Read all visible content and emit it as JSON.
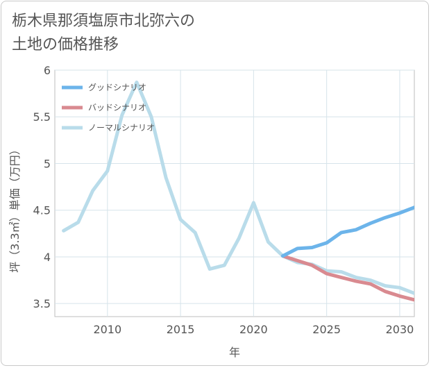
{
  "page": {
    "title_line1": "栃木県那須塩原市北弥六の",
    "title_line2": "土地の価格推移"
  },
  "chart_data": {
    "type": "line",
    "title": "栃木県那須塩原市北弥六の土地の価格推移",
    "xlabel": "年",
    "ylabel": "坪（3.3㎡）単価（万円）",
    "xlim": [
      2006.4,
      2031
    ],
    "ylim": [
      3.36,
      6
    ],
    "x_ticks": [
      2010,
      2015,
      2020,
      2025,
      2030
    ],
    "y_ticks": [
      3.5,
      4,
      4.5,
      5,
      5.5,
      6
    ],
    "y_tick_labels": [
      "3.5",
      "4",
      "4.5",
      "5",
      "5.5",
      "6"
    ],
    "grid": true,
    "legend_position": "top-left",
    "series": [
      {
        "name": "グッドシナリオ",
        "color": "#6cb4ea",
        "x": [
          2022,
          2023,
          2024,
          2025,
          2026,
          2027,
          2028,
          2029,
          2030,
          2031
        ],
        "y": [
          4.01,
          4.09,
          4.1,
          4.15,
          4.26,
          4.29,
          4.36,
          4.42,
          4.47,
          4.53
        ]
      },
      {
        "name": "バッドシナリオ",
        "color": "#d98a90",
        "x": [
          2022,
          2023,
          2024,
          2025,
          2026,
          2027,
          2028,
          2029,
          2030,
          2031
        ],
        "y": [
          4.01,
          3.96,
          3.91,
          3.82,
          3.78,
          3.74,
          3.71,
          3.63,
          3.58,
          3.54
        ]
      },
      {
        "name": "ノーマルシナリオ",
        "color": "#b9dcea",
        "x": [
          2007,
          2008,
          2009,
          2010,
          2011,
          2012,
          2013,
          2014,
          2015,
          2016,
          2017,
          2018,
          2019,
          2020,
          2021,
          2022,
          2023,
          2024,
          2025,
          2026,
          2027,
          2028,
          2029,
          2030,
          2031
        ],
        "y": [
          4.28,
          4.37,
          4.71,
          4.92,
          5.52,
          5.87,
          5.5,
          4.85,
          4.4,
          4.26,
          3.87,
          3.91,
          4.2,
          4.58,
          4.16,
          4.01,
          3.94,
          3.92,
          3.85,
          3.84,
          3.78,
          3.75,
          3.69,
          3.67,
          3.61
        ]
      }
    ]
  }
}
